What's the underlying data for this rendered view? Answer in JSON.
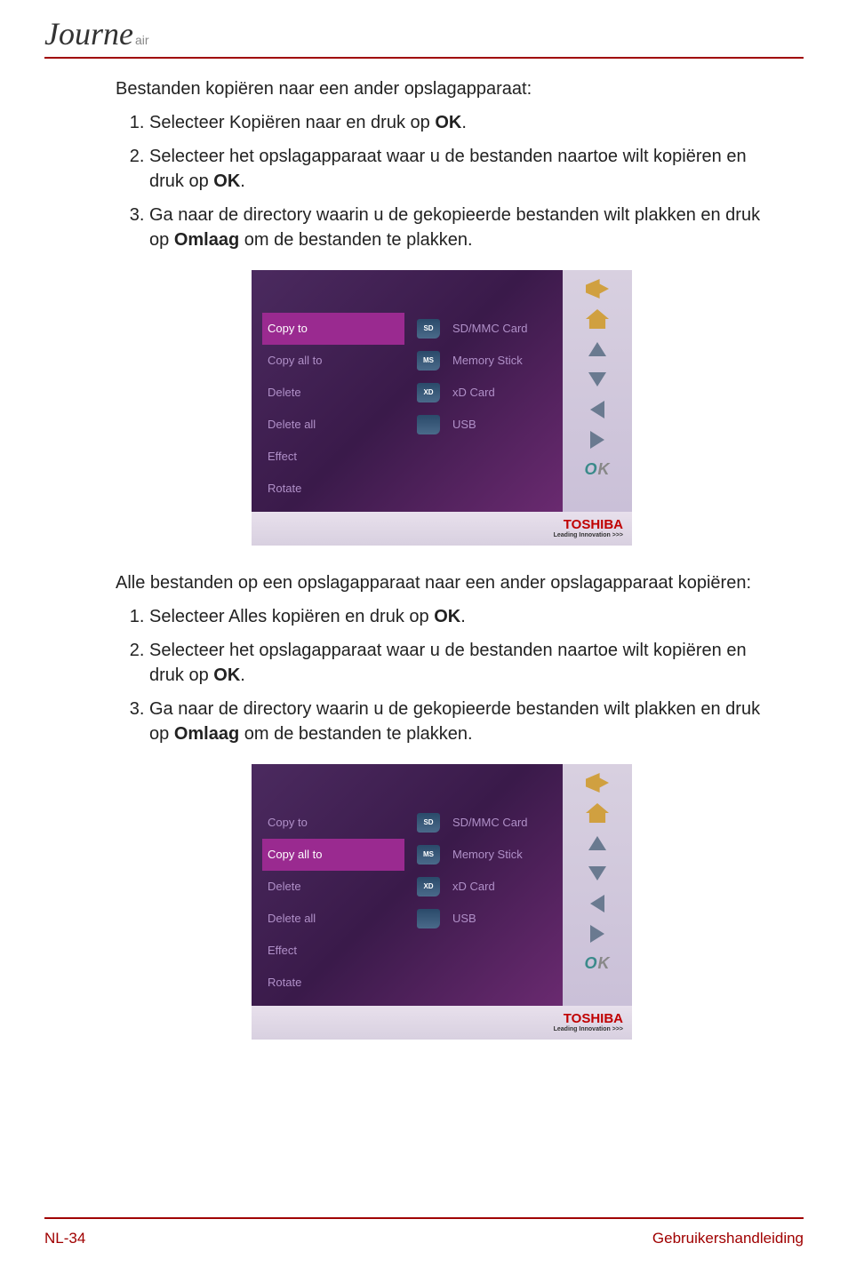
{
  "logo": {
    "main": "Journe",
    "sub": "air"
  },
  "section1": {
    "intro": "Bestanden kopiëren naar een ander opslagapparaat:",
    "items": [
      {
        "pre": "Selecteer Kopiëren naar en druk op ",
        "bold": "OK",
        "post": "."
      },
      {
        "pre": "Selecteer het opslagapparaat waar u de bestanden naartoe wilt kopiëren en druk op ",
        "bold": "OK",
        "post": "."
      },
      {
        "pre": "Ga naar de directory waarin u de gekopieerde bestanden wilt plakken en druk op ",
        "bold": "Omlaag",
        "post": " om de bestanden te plakken."
      }
    ]
  },
  "section2": {
    "intro": "Alle bestanden op een opslagapparaat naar een ander opslagapparaat kopiëren:",
    "items": [
      {
        "pre": "Selecteer Alles kopiëren en druk op ",
        "bold": "OK",
        "post": "."
      },
      {
        "pre": "Selecteer het opslagapparaat waar u de bestanden naartoe wilt kopiëren en druk op ",
        "bold": "OK",
        "post": "."
      },
      {
        "pre": "Ga naar de directory waarin u de gekopieerde bestanden wilt plakken en druk op ",
        "bold": "Omlaag",
        "post": " om de bestanden te plakken."
      }
    ]
  },
  "screenshot": {
    "menu": [
      "Copy to",
      "Copy all to",
      "Delete",
      "Delete all",
      "Effect",
      "Rotate"
    ],
    "active_index_a": 0,
    "active_index_b": 1,
    "storage": [
      {
        "icon": "SD",
        "label": "SD/MMC Card"
      },
      {
        "icon": "MS",
        "label": "Memory Stick"
      },
      {
        "icon": "XD",
        "label": "xD Card"
      },
      {
        "icon": "",
        "label": "USB"
      }
    ],
    "ok": "OK",
    "brand": "TOSHIBA",
    "brand_sub": "Leading Innovation >>>"
  },
  "footer": {
    "page": "NL-34",
    "title": "Gebruikershandleiding"
  }
}
